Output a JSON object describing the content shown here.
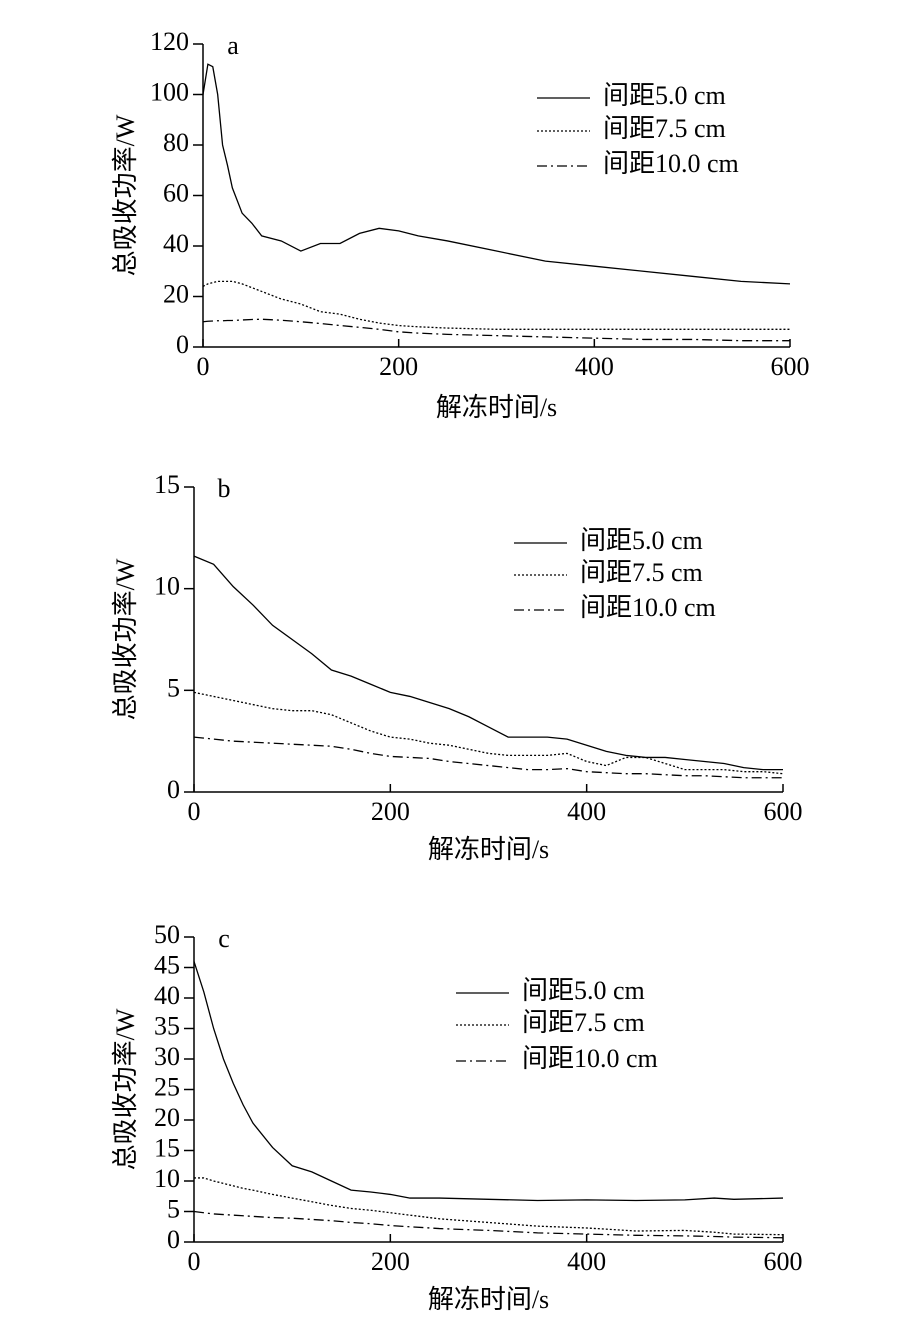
{
  "chart_data": [
    {
      "type": "line",
      "panel_label": "a",
      "xlabel": "解冻时间/s",
      "ylabel": "总吸收功率/W",
      "x": [
        0,
        5,
        10,
        15,
        20,
        25,
        30,
        40,
        50,
        60,
        80,
        100,
        120,
        140,
        160,
        180,
        200,
        220,
        250,
        300,
        350,
        400,
        450,
        500,
        550,
        600
      ],
      "series": [
        {
          "name": "间距5.0 cm",
          "color": "#000000",
          "linestyle": "solid",
          "values": [
            100,
            112,
            111,
            100,
            80,
            72,
            63,
            53,
            49,
            44,
            42,
            38,
            41,
            41,
            45,
            47,
            46,
            44,
            42,
            38,
            34,
            32,
            30,
            28,
            26,
            25
          ]
        },
        {
          "name": "间距7.5 cm",
          "color": "#000000",
          "linestyle": "dotted",
          "values": [
            24,
            25,
            25.5,
            26,
            26,
            26,
            26,
            25,
            23.5,
            22,
            19,
            17,
            14,
            13,
            11,
            9.5,
            8.5,
            8,
            7.5,
            7,
            7,
            7,
            7,
            7,
            7,
            7
          ]
        },
        {
          "name": "间距10.0 cm",
          "color": "#000000",
          "linestyle": "dashdot",
          "values": [
            10,
            10.2,
            10.3,
            10.4,
            10.4,
            10.5,
            10.5,
            10.7,
            10.9,
            11,
            10.6,
            10,
            9.3,
            8.5,
            7.8,
            7,
            6,
            5.5,
            5,
            4.5,
            4,
            3.5,
            3,
            3,
            2.5,
            2.5
          ]
        }
      ],
      "xlim": [
        0,
        600
      ],
      "xticks": [
        0,
        200,
        400,
        600
      ],
      "ylim": [
        0,
        120
      ],
      "yticks": [
        0,
        20,
        40,
        60,
        80,
        100,
        120
      ],
      "legend": "upper right"
    },
    {
      "type": "line",
      "panel_label": "b",
      "xlabel": "解冻时间/s",
      "ylabel": "总吸收功率/W",
      "x": [
        0,
        20,
        40,
        60,
        80,
        100,
        120,
        140,
        160,
        180,
        200,
        220,
        240,
        260,
        280,
        300,
        320,
        340,
        360,
        380,
        400,
        420,
        440,
        460,
        480,
        500,
        520,
        540,
        560,
        580,
        600
      ],
      "series": [
        {
          "name": "间距5.0 cm",
          "color": "#000000",
          "linestyle": "solid",
          "values": [
            11.6,
            11.2,
            10.1,
            9.2,
            8.2,
            7.5,
            6.8,
            6.0,
            5.7,
            5.3,
            4.9,
            4.7,
            4.4,
            4.1,
            3.7,
            3.2,
            2.7,
            2.7,
            2.7,
            2.6,
            2.3,
            2.0,
            1.8,
            1.7,
            1.7,
            1.6,
            1.5,
            1.4,
            1.2,
            1.1,
            1.1
          ]
        },
        {
          "name": "间距7.5 cm",
          "color": "#000000",
          "linestyle": "dotted",
          "values": [
            4.9,
            4.7,
            4.5,
            4.3,
            4.1,
            4.0,
            4.0,
            3.8,
            3.4,
            3.0,
            2.7,
            2.6,
            2.4,
            2.3,
            2.1,
            1.9,
            1.8,
            1.8,
            1.8,
            1.9,
            1.5,
            1.3,
            1.7,
            1.7,
            1.4,
            1.1,
            1.1,
            1.1,
            1.0,
            1.0,
            0.9
          ]
        },
        {
          "name": "间距10.0 cm",
          "color": "#000000",
          "linestyle": "dashdot",
          "values": [
            2.7,
            2.6,
            2.5,
            2.45,
            2.4,
            2.35,
            2.3,
            2.25,
            2.1,
            1.9,
            1.75,
            1.7,
            1.65,
            1.5,
            1.4,
            1.3,
            1.2,
            1.1,
            1.1,
            1.15,
            1.0,
            0.95,
            0.9,
            0.9,
            0.85,
            0.8,
            0.8,
            0.75,
            0.7,
            0.7,
            0.7
          ]
        }
      ],
      "xlim": [
        0,
        600
      ],
      "xticks": [
        0,
        200,
        400,
        600
      ],
      "ylim": [
        0,
        15
      ],
      "yticks": [
        0,
        5,
        10,
        15
      ],
      "legend": "upper right"
    },
    {
      "type": "line",
      "panel_label": "c",
      "xlabel": "解冻时间/s",
      "ylabel": "总吸收功率/W",
      "x": [
        0,
        10,
        20,
        30,
        40,
        50,
        60,
        80,
        100,
        120,
        140,
        160,
        180,
        200,
        220,
        250,
        300,
        350,
        400,
        450,
        500,
        530,
        550,
        600
      ],
      "series": [
        {
          "name": "间距5.0 cm",
          "color": "#000000",
          "linestyle": "solid",
          "values": [
            46,
            41,
            35,
            30,
            26,
            22.5,
            19.5,
            15.5,
            12.5,
            11.5,
            10,
            8.5,
            8.2,
            7.8,
            7.2,
            7.2,
            7,
            6.8,
            6.9,
            6.8,
            6.9,
            7.2,
            7.0,
            7.2
          ]
        },
        {
          "name": "间距7.5 cm",
          "color": "#000000",
          "linestyle": "dotted",
          "values": [
            10.5,
            10.5,
            10,
            9.6,
            9.2,
            8.8,
            8.5,
            7.8,
            7.2,
            6.6,
            6,
            5.5,
            5.2,
            4.8,
            4.4,
            3.8,
            3.2,
            2.6,
            2.3,
            1.8,
            1.9,
            1.6,
            1.3,
            1.2
          ]
        },
        {
          "name": "间距10.0 cm",
          "color": "#000000",
          "linestyle": "dashdot",
          "values": [
            5,
            4.8,
            4.6,
            4.5,
            4.4,
            4.3,
            4.2,
            4,
            3.9,
            3.7,
            3.5,
            3.2,
            3,
            2.7,
            2.5,
            2.2,
            1.9,
            1.5,
            1.3,
            1.1,
            1.0,
            0.9,
            0.8,
            0.7
          ]
        }
      ],
      "xlim": [
        0,
        600
      ],
      "xticks": [
        0,
        200,
        400,
        600
      ],
      "ylim": [
        0,
        50
      ],
      "yticks": [
        0,
        5,
        10,
        15,
        20,
        25,
        30,
        35,
        40,
        45,
        50
      ],
      "legend": "upper right"
    }
  ]
}
